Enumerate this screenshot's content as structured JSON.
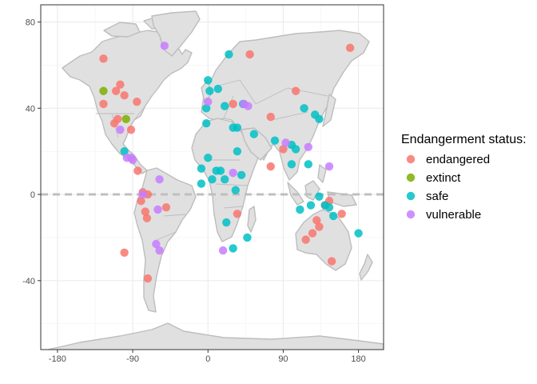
{
  "chart_data": {
    "type": "scatter",
    "title": "",
    "xlabel": "",
    "ylabel": "",
    "xlim": [
      -200,
      210
    ],
    "ylim": [
      -72,
      88
    ],
    "x_ticks": [
      -180,
      -90,
      0,
      90,
      180
    ],
    "y_ticks": [
      -40,
      0,
      40,
      80
    ],
    "grid": true,
    "reference_line": {
      "y": 0,
      "style": "dashed"
    },
    "legend": {
      "title": "Endangerment status:",
      "position": "right"
    },
    "series": [
      {
        "name": "endangered",
        "color": "#F8766D",
        "points": [
          [
            -125,
            63
          ],
          [
            -110,
            48
          ],
          [
            -105,
            51
          ],
          [
            -100,
            46
          ],
          [
            -125,
            42
          ],
          [
            -112,
            33
          ],
          [
            -108,
            35
          ],
          [
            -92,
            30
          ],
          [
            -85,
            43
          ],
          [
            -84,
            11
          ],
          [
            -100,
            -27
          ],
          [
            -78,
            1
          ],
          [
            -80,
            -3
          ],
          [
            -72,
            0
          ],
          [
            -75,
            -8
          ],
          [
            -73,
            -11
          ],
          [
            -50,
            -6
          ],
          [
            -72,
            -39
          ],
          [
            30,
            42
          ],
          [
            50,
            65
          ],
          [
            75,
            36
          ],
          [
            90,
            21
          ],
          [
            105,
            48
          ],
          [
            75,
            13
          ],
          [
            35,
            -9
          ],
          [
            117,
            -21
          ],
          [
            125,
            -18
          ],
          [
            130,
            -12
          ],
          [
            133,
            -15
          ],
          [
            140,
            -5
          ],
          [
            145,
            -3
          ],
          [
            160,
            -9
          ],
          [
            148,
            -31
          ],
          [
            170,
            68
          ]
        ]
      },
      {
        "name": "extinct",
        "color": "#7CAE00",
        "points": [
          [
            -125,
            48
          ],
          [
            -98,
            35
          ]
        ]
      },
      {
        "name": "safe",
        "color": "#00BFC4",
        "points": [
          [
            -100,
            20
          ],
          [
            25,
            65
          ],
          [
            0,
            53
          ],
          [
            2,
            48
          ],
          [
            12,
            49
          ],
          [
            -2,
            40
          ],
          [
            -2,
            33
          ],
          [
            20,
            41
          ],
          [
            30,
            31
          ],
          [
            35,
            31
          ],
          [
            42,
            42
          ],
          [
            55,
            28
          ],
          [
            0,
            17
          ],
          [
            -8,
            12
          ],
          [
            5,
            7
          ],
          [
            10,
            11
          ],
          [
            15,
            11
          ],
          [
            20,
            7
          ],
          [
            35,
            20
          ],
          [
            40,
            9
          ],
          [
            33,
            2
          ],
          [
            -8,
            5
          ],
          [
            22,
            -13
          ],
          [
            30,
            -25
          ],
          [
            47,
            -20
          ],
          [
            80,
            25
          ],
          [
            100,
            23
          ],
          [
            105,
            21
          ],
          [
            100,
            14
          ],
          [
            120,
            14
          ],
          [
            115,
            40
          ],
          [
            128,
            37
          ],
          [
            133,
            35
          ],
          [
            110,
            -7
          ],
          [
            123,
            -5
          ],
          [
            133,
            -1
          ],
          [
            140,
            -5
          ],
          [
            145,
            -6
          ],
          [
            150,
            -10
          ],
          [
            180,
            -18
          ]
        ]
      },
      {
        "name": "vulnerable",
        "color": "#C77CFF",
        "points": [
          [
            -52,
            69
          ],
          [
            -105,
            30
          ],
          [
            -97,
            17
          ],
          [
            -92,
            17
          ],
          [
            -90,
            16
          ],
          [
            -58,
            7
          ],
          [
            -78,
            0
          ],
          [
            -60,
            -7
          ],
          [
            -62,
            -23
          ],
          [
            -58,
            -26
          ],
          [
            0,
            43
          ],
          [
            43,
            42
          ],
          [
            48,
            41
          ],
          [
            30,
            10
          ],
          [
            18,
            -26
          ],
          [
            93,
            24
          ],
          [
            120,
            22
          ],
          [
            145,
            13
          ]
        ]
      }
    ]
  }
}
